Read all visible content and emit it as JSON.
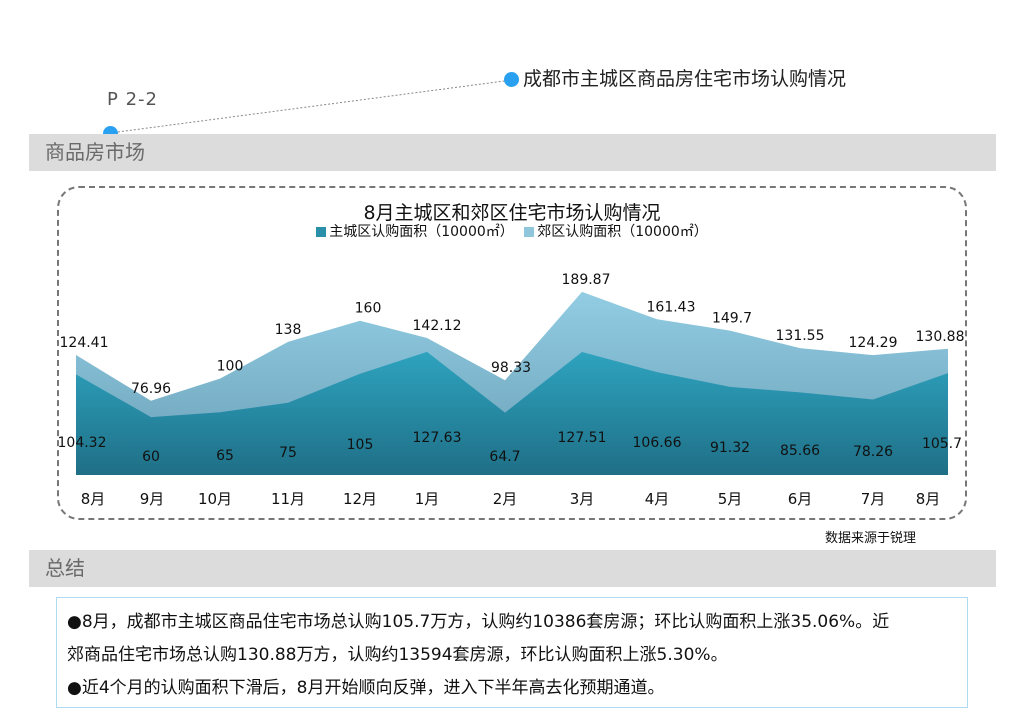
{
  "header": {
    "page_code": "P 2-2",
    "title": "成都市主城区商品房住宅市场认购情况"
  },
  "section1": {
    "label": "商品房市场"
  },
  "section2": {
    "label": "总结"
  },
  "source_note": "数据来源于锐理",
  "summary": {
    "line1": "●8月，成都市主城区商品住宅市场总认购105.7万方，认购约10386套房源；环比认购面积上涨35.06%。近",
    "line2": "郊商品住宅市场总认购130.88万方，认购约13594套房源，环比认购面积上涨5.30%。",
    "line3": "●近4个月的认购面积下滑后，8月开始顺向反弹，进入下半年高去化预期通道。"
  },
  "colors": {
    "main_series": "#2a8fa8",
    "suburb_series": "#8fc6dc",
    "accent_dot": "#2aa1f0"
  },
  "chart_data": {
    "type": "area",
    "title": "8月主城区和郊区住宅市场认购情况",
    "categories": [
      "8月",
      "9月",
      "10月",
      "11月",
      "12月",
      "1月",
      "2月",
      "3月",
      "4月",
      "5月",
      "6月",
      "7月",
      "8月"
    ],
    "series": [
      {
        "name": "主城区认购面积（10000㎡）",
        "values": [
          104.32,
          60,
          65,
          75,
          105,
          127.63,
          64.7,
          127.51,
          106.66,
          91.32,
          85.66,
          78.26,
          105.7
        ]
      },
      {
        "name": "郊区认购面积（10000㎡）",
        "values": [
          124.41,
          76.96,
          100,
          138,
          160,
          142.12,
          98.33,
          189.87,
          161.43,
          149.7,
          131.55,
          124.29,
          130.88
        ]
      }
    ],
    "stacked": false,
    "xlabel": "",
    "ylabel": "",
    "ylim": [
      0,
      280
    ],
    "grid": false,
    "legend": "top"
  }
}
